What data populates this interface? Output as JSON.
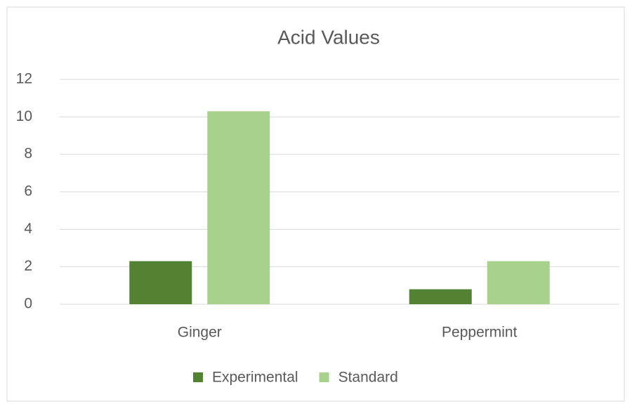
{
  "chart_data": {
    "type": "bar",
    "title": "Acid Values",
    "categories": [
      "Ginger",
      "Peppermint"
    ],
    "series": [
      {
        "name": "Experimental",
        "color": "#548235",
        "values": [
          2.3,
          0.8
        ]
      },
      {
        "name": "Standard",
        "color": "#a9d18e",
        "values": [
          10.3,
          2.3
        ]
      }
    ],
    "ylim": [
      0,
      12
    ],
    "yticks": [
      0,
      2,
      4,
      6,
      8,
      10,
      12
    ],
    "grid": true,
    "legend": "bottom"
  }
}
